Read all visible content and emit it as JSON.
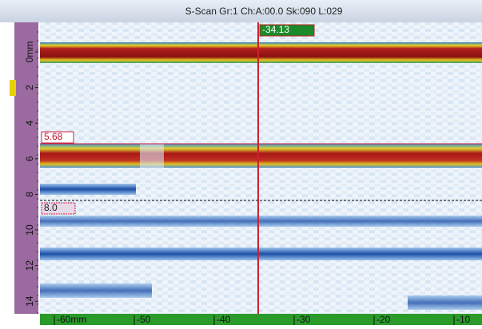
{
  "header": {
    "title": "S-Scan Gr:1 Ch:A:00.0 Sk:090 L:029"
  },
  "cursors": {
    "vertical": "-34.13",
    "horizontal_top": "5.68",
    "horizontal_bottom": "8.0"
  },
  "depth_axis": {
    "labels": [
      "0mm",
      "2",
      "4",
      "6",
      "8",
      "10",
      "12",
      "14"
    ]
  },
  "scan_axis": {
    "labels": [
      "-60mm",
      "-50",
      "-40",
      "-30",
      "-20",
      "-10"
    ]
  }
}
